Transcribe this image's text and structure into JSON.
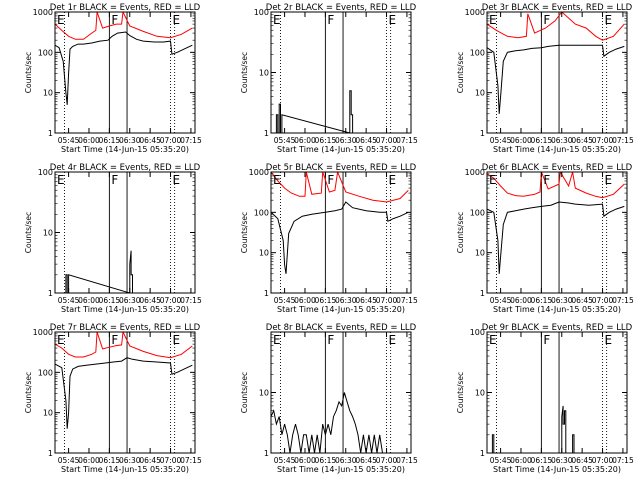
{
  "figure": {
    "x_tick_labels": [
      "05:45",
      "06:00",
      "06:15",
      "06:30",
      "06:45",
      "07:00",
      "07:15"
    ],
    "x_axis_label": "Start Time (14-Jun-15 05:35:20)",
    "y_axis_label": "Counts/sec",
    "colors": {
      "events": "#000000",
      "lld": "#ff0000",
      "axes": "#000000"
    }
  },
  "chart_data": [
    {
      "type": "line",
      "title": "Det 1r BLACK = Events, RED = LLD",
      "ylim": [
        1,
        1000
      ],
      "yscale": "log",
      "y_tick_labels": [
        "1",
        "10",
        "100",
        "1000"
      ],
      "xlim": [
        "05:35",
        "07:18"
      ],
      "markers": [
        {
          "label": "E",
          "x": "05:35"
        },
        {
          "label": "F",
          "x": "06:15"
        },
        {
          "label": "E",
          "x": "07:00"
        }
      ],
      "solid_lines": [
        "06:15",
        "06:28"
      ],
      "dotted_lines": [
        "05:42",
        "07:00",
        "07:03"
      ],
      "series": [
        {
          "name": "Events",
          "color": "#000000",
          "x": [
            "05:35",
            "05:38",
            "05:41",
            "05:43",
            "05:44",
            "05:45",
            "05:46",
            "05:48",
            "05:52",
            "05:56",
            "06:02",
            "06:08",
            "06:14",
            "06:17",
            "06:21",
            "06:27",
            "06:30",
            "06:35",
            "06:40",
            "06:48",
            "06:55",
            "07:00",
            "07:01",
            "07:05",
            "07:10",
            "07:16"
          ],
          "values": [
            150,
            130,
            60,
            10,
            5,
            30,
            120,
            140,
            160,
            160,
            170,
            190,
            200,
            250,
            300,
            320,
            260,
            210,
            190,
            180,
            180,
            190,
            90,
            100,
            120,
            150
          ]
        },
        {
          "name": "LLD",
          "color": "#ff0000",
          "x": [
            "05:35",
            "05:40",
            "05:45",
            "05:50",
            "05:56",
            "06:02",
            "06:05",
            "06:06",
            "06:10",
            "06:15",
            "06:20",
            "06:24",
            "06:25",
            "06:30",
            "06:40",
            "06:50",
            "07:00",
            "07:08",
            "07:16"
          ],
          "values": [
            500,
            350,
            250,
            210,
            210,
            300,
            350,
            1000,
            400,
            450,
            500,
            500,
            1000,
            450,
            330,
            250,
            230,
            280,
            400
          ]
        }
      ]
    },
    {
      "type": "line",
      "title": "Det 2r BLACK = Events, RED = LLD",
      "ylim": [
        1,
        100
      ],
      "yscale": "log",
      "y_tick_labels": [
        "1",
        "10",
        "100"
      ],
      "xlim": [
        "05:35",
        "07:18"
      ],
      "markers": [
        {
          "label": "E",
          "x": "05:35"
        },
        {
          "label": "F",
          "x": "06:15"
        },
        {
          "label": "E",
          "x": "07:00"
        }
      ],
      "solid_lines": [
        "06:15",
        "06:28"
      ],
      "dotted_lines": [
        "05:42",
        "07:00",
        "07:03"
      ],
      "series": [
        {
          "name": "Events",
          "color": "#000000",
          "x": [
            "05:39",
            "05:39",
            "05:40",
            "05:40",
            "05:41",
            "05:41",
            "05:42",
            "05:42",
            "05:43",
            "05:43",
            "06:33",
            "06:33",
            "06:34",
            "06:34",
            "06:35",
            "06:35"
          ],
          "values": [
            1,
            2,
            2,
            1,
            1,
            3,
            3,
            1,
            1,
            2,
            1,
            5,
            5,
            2,
            2,
            1
          ]
        }
      ]
    },
    {
      "type": "line",
      "title": "Det 3r BLACK = Events, RED = LLD",
      "ylim": [
        1,
        1000
      ],
      "yscale": "log",
      "y_tick_labels": [
        "1",
        "10",
        "100",
        "1000"
      ],
      "xlim": [
        "05:35",
        "07:18"
      ],
      "markers": [
        {
          "label": "E",
          "x": "05:35"
        },
        {
          "label": "F",
          "x": "06:15"
        },
        {
          "label": "E",
          "x": "07:00"
        }
      ],
      "solid_lines": [
        "06:15",
        "06:28"
      ],
      "dotted_lines": [
        "05:42",
        "07:00",
        "07:03"
      ],
      "series": [
        {
          "name": "Events",
          "color": "#000000",
          "x": [
            "05:35",
            "05:40",
            "05:43",
            "05:44",
            "05:45",
            "05:47",
            "05:50",
            "05:56",
            "06:02",
            "06:08",
            "06:15",
            "06:20",
            "06:28",
            "06:35",
            "06:40",
            "06:50",
            "07:00",
            "07:01",
            "07:05",
            "07:10",
            "07:16"
          ],
          "values": [
            130,
            100,
            15,
            3,
            8,
            60,
            100,
            110,
            115,
            125,
            130,
            140,
            150,
            150,
            150,
            150,
            150,
            80,
            100,
            120,
            140
          ]
        },
        {
          "name": "LLD",
          "color": "#ff0000",
          "x": [
            "05:35",
            "05:42",
            "05:50",
            "05:58",
            "06:04",
            "06:05",
            "06:10",
            "06:18",
            "06:25",
            "06:30",
            "06:40",
            "06:48",
            "06:55",
            "07:00",
            "07:08",
            "07:16"
          ],
          "values": [
            500,
            350,
            250,
            230,
            250,
            900,
            300,
            400,
            600,
            1000,
            500,
            400,
            250,
            200,
            250,
            500
          ]
        }
      ]
    },
    {
      "type": "line",
      "title": "Det 4r BLACK = Events, RED = LLD",
      "ylim": [
        1,
        100
      ],
      "yscale": "log",
      "y_tick_labels": [
        "1",
        "10",
        "100"
      ],
      "xlim": [
        "05:35",
        "07:18"
      ],
      "markers": [
        {
          "label": "E",
          "x": "05:35"
        },
        {
          "label": "F",
          "x": "06:15"
        },
        {
          "label": "E",
          "x": "07:00"
        }
      ],
      "solid_lines": [
        "06:15",
        "06:28"
      ],
      "dotted_lines": [
        "05:42",
        "07:00",
        "07:03"
      ],
      "series": [
        {
          "name": "Events",
          "color": "#000000",
          "x": [
            "05:43",
            "05:43",
            "05:44",
            "05:44",
            "05:45",
            "05:45",
            "06:30",
            "06:30",
            "06:31",
            "06:31",
            "06:32",
            "06:32"
          ],
          "values": [
            1,
            2,
            2,
            1,
            1,
            2,
            1,
            3,
            5,
            2,
            2,
            1
          ]
        }
      ]
    },
    {
      "type": "line",
      "title": "Det 5r BLACK = Events, RED = LLD",
      "ylim": [
        1,
        1000
      ],
      "yscale": "log",
      "y_tick_labels": [
        "1",
        "10",
        "100",
        "1000"
      ],
      "xlim": [
        "05:35",
        "07:18"
      ],
      "markers": [
        {
          "label": "E",
          "x": "05:35"
        },
        {
          "label": "F",
          "x": "06:15"
        },
        {
          "label": "E",
          "x": "07:00"
        }
      ],
      "solid_lines": [
        "06:15",
        "06:28"
      ],
      "dotted_lines": [
        "05:42",
        "07:00",
        "07:03"
      ],
      "series": [
        {
          "name": "Events",
          "color": "#000000",
          "x": [
            "05:35",
            "05:40",
            "05:44",
            "05:45",
            "05:46",
            "05:48",
            "05:52",
            "05:58",
            "06:05",
            "06:15",
            "06:22",
            "06:27",
            "06:30",
            "06:35",
            "06:45",
            "06:55",
            "07:00",
            "07:01",
            "07:05",
            "07:10",
            "07:16"
          ],
          "values": [
            100,
            70,
            20,
            5,
            3,
            30,
            60,
            80,
            90,
            100,
            110,
            120,
            180,
            130,
            110,
            100,
            100,
            60,
            70,
            80,
            100
          ]
        },
        {
          "name": "LLD",
          "color": "#ff0000",
          "x": [
            "05:35",
            "05:40",
            "05:45",
            "05:50",
            "05:56",
            "06:00",
            "06:01",
            "06:05",
            "06:12",
            "06:13",
            "06:18",
            "06:22",
            "06:24",
            "06:30",
            "06:40",
            "06:50",
            "07:00",
            "07:10",
            "07:16"
          ],
          "values": [
            1000,
            600,
            400,
            300,
            250,
            250,
            1000,
            280,
            300,
            1000,
            320,
            350,
            1000,
            320,
            250,
            200,
            180,
            220,
            350
          ]
        }
      ]
    },
    {
      "type": "line",
      "title": "Det 6r BLACK = Events, RED = LLD",
      "ylim": [
        1,
        1000
      ],
      "yscale": "log",
      "y_tick_labels": [
        "1",
        "10",
        "100",
        "1000"
      ],
      "xlim": [
        "05:35",
        "07:18"
      ],
      "markers": [
        {
          "label": "E",
          "x": "05:35"
        },
        {
          "label": "F",
          "x": "06:15"
        },
        {
          "label": "E",
          "x": "07:00"
        }
      ],
      "solid_lines": [
        "06:15",
        "06:28"
      ],
      "dotted_lines": [
        "05:42",
        "07:00",
        "07:03"
      ],
      "series": [
        {
          "name": "Events",
          "color": "#000000",
          "x": [
            "05:35",
            "05:40",
            "05:43",
            "05:44",
            "05:45",
            "05:47",
            "05:50",
            "05:56",
            "06:02",
            "06:08",
            "06:15",
            "06:22",
            "06:28",
            "06:35",
            "06:40",
            "06:50",
            "07:00",
            "07:01",
            "07:05",
            "07:10",
            "07:16"
          ],
          "values": [
            120,
            100,
            20,
            3,
            8,
            50,
            100,
            110,
            120,
            130,
            140,
            150,
            180,
            170,
            160,
            150,
            160,
            80,
            100,
            120,
            140
          ]
        },
        {
          "name": "LLD",
          "color": "#ff0000",
          "x": [
            "05:35",
            "05:40",
            "05:45",
            "05:50",
            "05:56",
            "06:02",
            "06:10",
            "06:14",
            "06:15",
            "06:20",
            "06:28",
            "06:29",
            "06:35",
            "06:38",
            "06:40",
            "06:48",
            "06:55",
            "07:00",
            "07:08",
            "07:16"
          ],
          "values": [
            900,
            700,
            450,
            300,
            260,
            250,
            280,
            320,
            1000,
            380,
            500,
            1000,
            450,
            1000,
            400,
            300,
            250,
            230,
            280,
            500
          ]
        }
      ]
    },
    {
      "type": "line",
      "title": "Det 7r BLACK = Events, RED = LLD",
      "ylim": [
        1,
        1000
      ],
      "yscale": "log",
      "y_tick_labels": [
        "1",
        "10",
        "100",
        "1000"
      ],
      "xlim": [
        "05:35",
        "07:18"
      ],
      "markers": [
        {
          "label": "E",
          "x": "05:35"
        },
        {
          "label": "F",
          "x": "06:15"
        },
        {
          "label": "E",
          "x": "07:00"
        }
      ],
      "solid_lines": [
        "06:15",
        "06:28"
      ],
      "dotted_lines": [
        "05:42",
        "07:00",
        "07:03"
      ],
      "series": [
        {
          "name": "Events",
          "color": "#000000",
          "x": [
            "05:35",
            "05:40",
            "05:43",
            "05:44",
            "05:45",
            "05:46",
            "05:48",
            "05:52",
            "05:58",
            "06:05",
            "06:12",
            "06:18",
            "06:24",
            "06:28",
            "06:32",
            "06:40",
            "06:50",
            "07:00",
            "07:01",
            "07:05",
            "07:10",
            "07:16"
          ],
          "values": [
            160,
            130,
            20,
            4,
            10,
            80,
            120,
            140,
            150,
            160,
            170,
            180,
            190,
            230,
            210,
            190,
            180,
            170,
            90,
            100,
            120,
            150
          ]
        },
        {
          "name": "LLD",
          "color": "#ff0000",
          "x": [
            "05:35",
            "05:40",
            "05:45",
            "05:50",
            "05:56",
            "06:02",
            "06:05",
            "06:06",
            "06:10",
            "06:15",
            "06:20",
            "06:24",
            "06:25",
            "06:30",
            "06:40",
            "06:50",
            "07:00",
            "07:08",
            "07:16"
          ],
          "values": [
            500,
            400,
            280,
            240,
            240,
            280,
            320,
            1000,
            380,
            420,
            460,
            480,
            1000,
            450,
            330,
            260,
            230,
            280,
            450
          ]
        }
      ]
    },
    {
      "type": "line",
      "title": "Det 8r BLACK = Events, RED = LLD",
      "ylim": [
        1,
        100
      ],
      "yscale": "log",
      "y_tick_labels": [
        "1",
        "10"
      ],
      "xlim": [
        "05:35",
        "07:18"
      ],
      "markers": [
        {
          "label": "E",
          "x": "05:35"
        },
        {
          "label": "F",
          "x": "06:15"
        },
        {
          "label": "E",
          "x": "07:00"
        }
      ],
      "solid_lines": [
        "06:15",
        "06:28"
      ],
      "dotted_lines": [
        "05:42",
        "07:00",
        "07:03"
      ],
      "series": [
        {
          "name": "Events",
          "color": "#000000",
          "x": [
            "05:35",
            "05:37",
            "05:39",
            "05:41",
            "05:43",
            "05:45",
            "05:47",
            "05:49",
            "05:51",
            "05:53",
            "05:55",
            "05:57",
            "05:59",
            "06:01",
            "06:03",
            "06:05",
            "06:07",
            "06:09",
            "06:11",
            "06:13",
            "06:15",
            "06:17",
            "06:19",
            "06:21",
            "06:23",
            "06:25",
            "06:27",
            "06:29",
            "06:31",
            "06:33",
            "06:35",
            "06:37",
            "06:39",
            "06:41",
            "06:43",
            "06:45",
            "06:47",
            "06:49",
            "06:51",
            "06:53",
            "06:55",
            "06:57"
          ],
          "values": [
            4,
            5,
            3,
            4,
            2,
            3,
            2,
            1,
            2,
            3,
            2,
            1,
            2,
            2,
            1,
            2,
            1,
            2,
            1,
            3,
            2,
            3,
            2,
            4,
            5,
            7,
            6,
            10,
            7,
            5,
            4,
            3,
            2,
            1,
            2,
            1,
            2,
            1,
            2,
            1,
            2,
            1
          ]
        }
      ]
    },
    {
      "type": "line",
      "title": "Det 9r BLACK = Events, RED = LLD",
      "ylim": [
        1,
        100
      ],
      "yscale": "log",
      "y_tick_labels": [
        "1",
        "10",
        "100"
      ],
      "xlim": [
        "05:35",
        "07:18"
      ],
      "markers": [
        {
          "label": "E",
          "x": "05:35"
        },
        {
          "label": "F",
          "x": "06:15"
        },
        {
          "label": "E",
          "x": "07:00"
        }
      ],
      "solid_lines": [
        "06:15",
        "06:28"
      ],
      "dotted_lines": [
        "05:42",
        "07:00",
        "07:03"
      ],
      "series": [
        {
          "name": "Events",
          "color": "#000000",
          "x": [
            "05:39",
            "05:39",
            "05:40",
            "05:40",
            "06:30",
            "06:30",
            "06:31",
            "06:31",
            "06:32",
            "06:32",
            "06:33",
            "06:33",
            "06:38",
            "06:38",
            "06:39",
            "06:39"
          ],
          "values": [
            1,
            2,
            2,
            1,
            1,
            4,
            6,
            3,
            3,
            5,
            5,
            1,
            1,
            2,
            2,
            1
          ]
        }
      ]
    }
  ]
}
